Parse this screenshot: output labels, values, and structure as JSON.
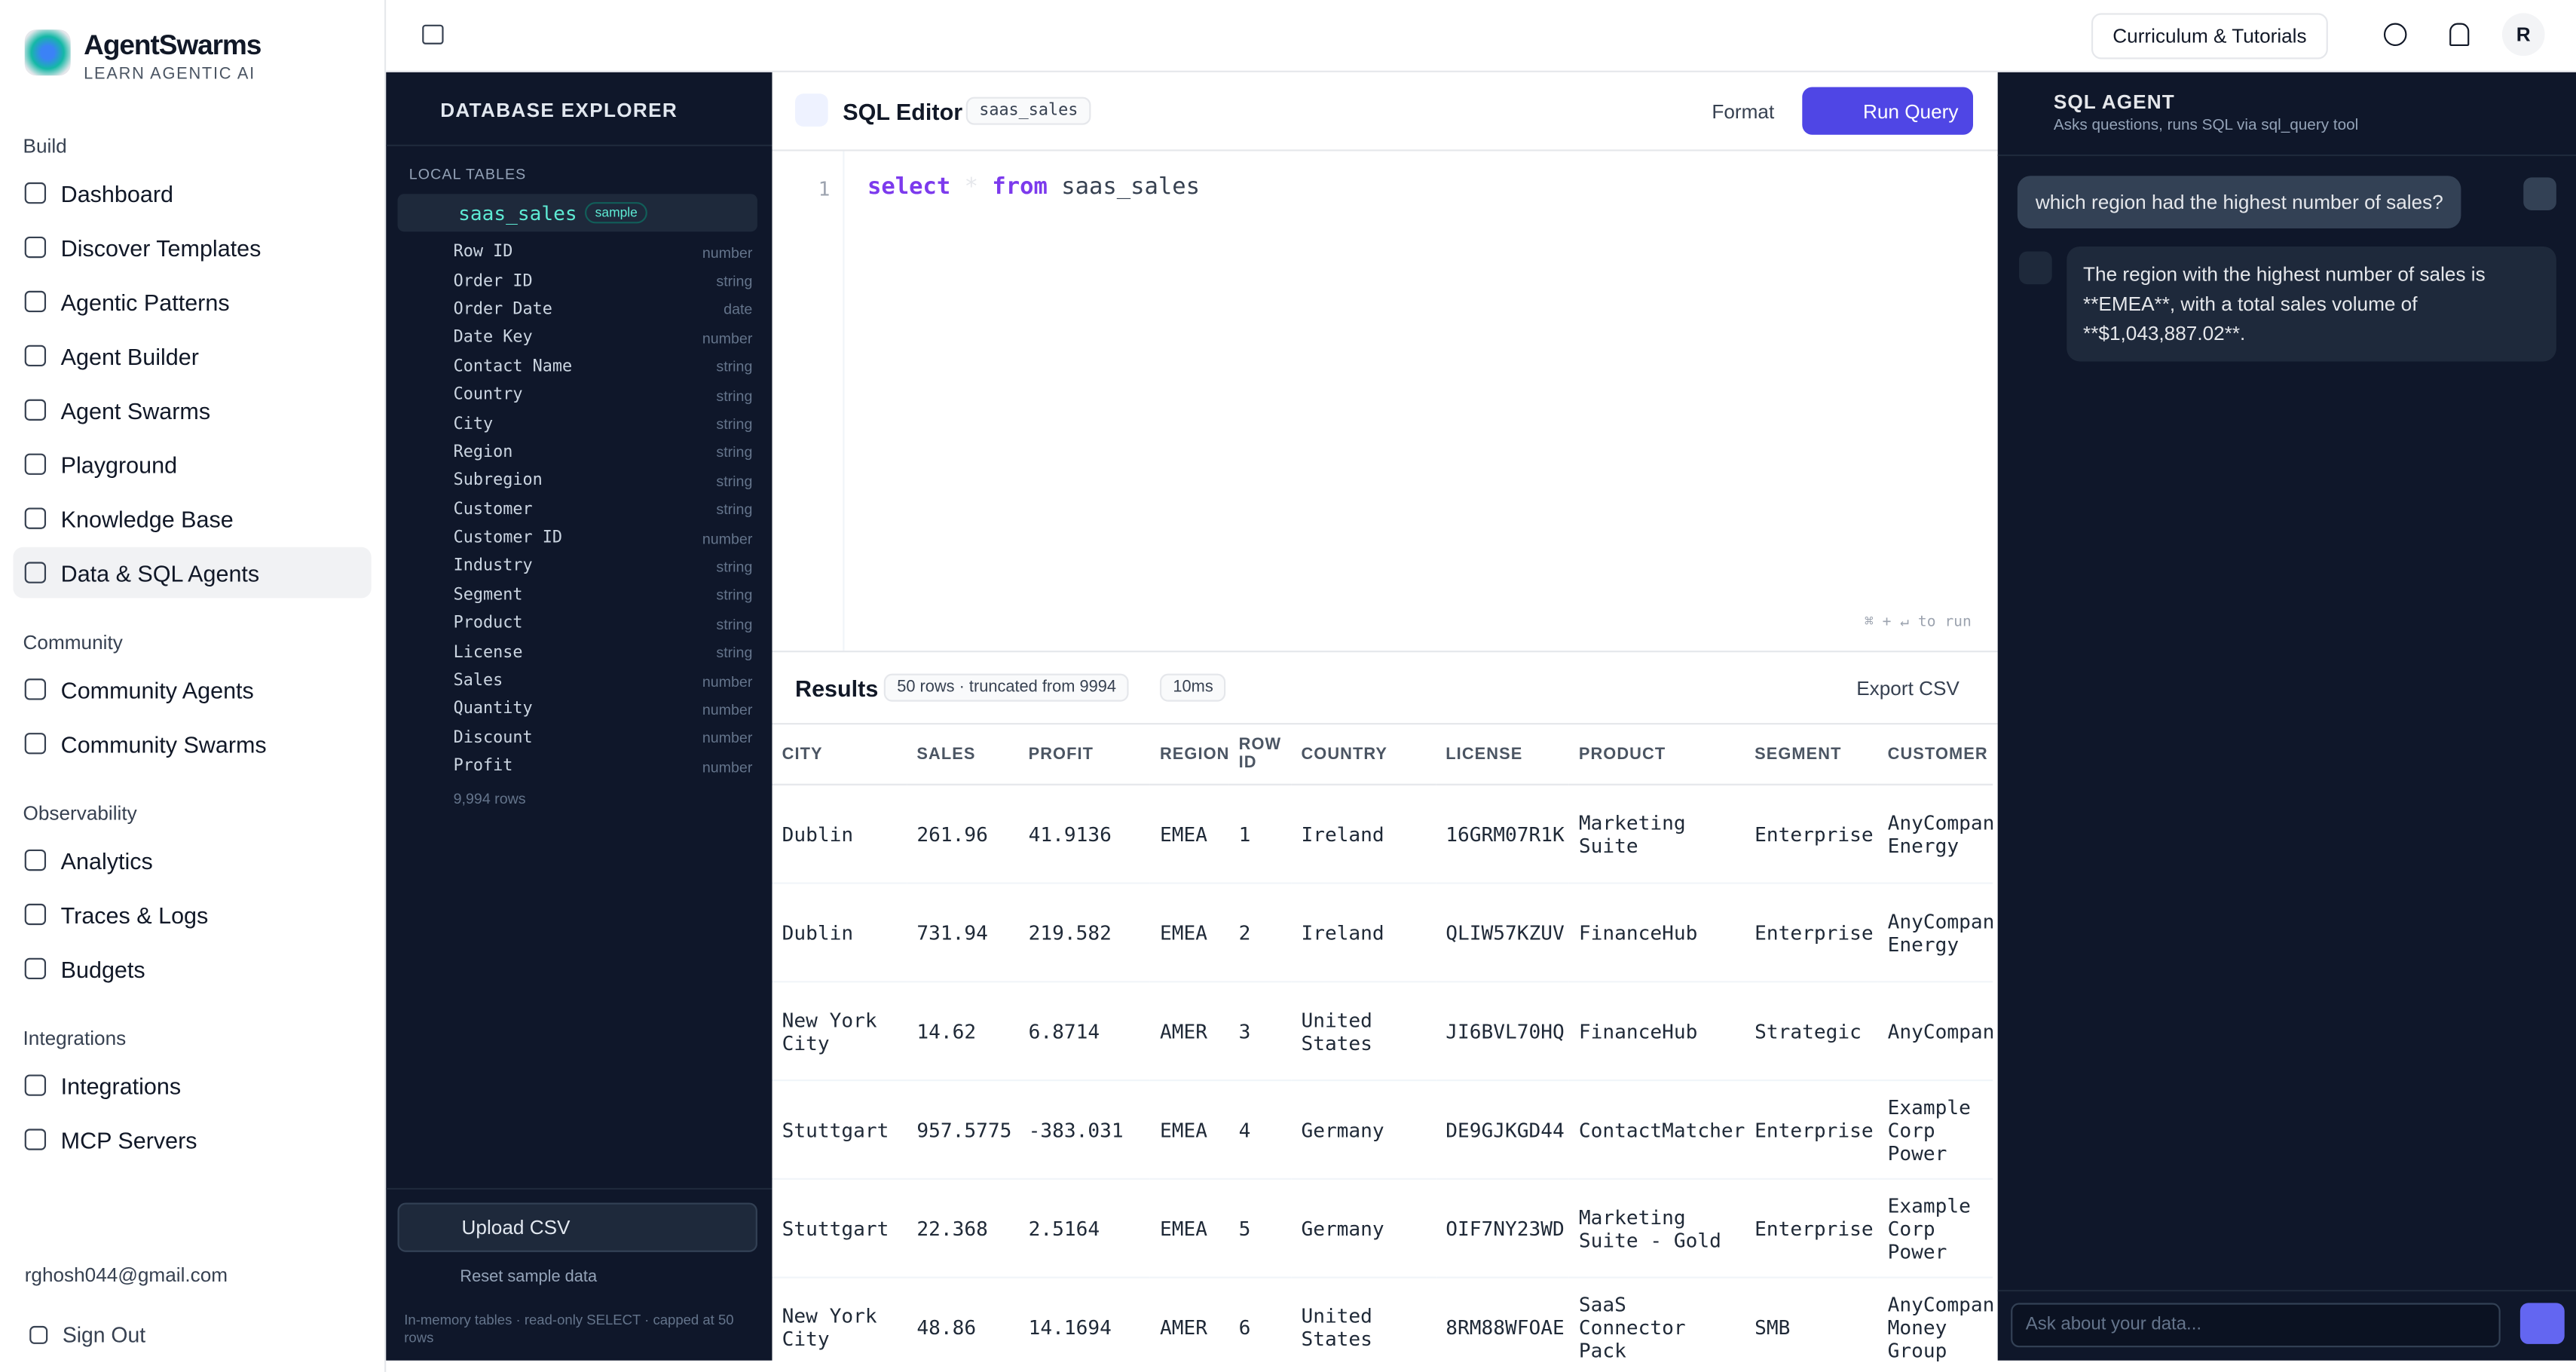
{
  "brand": {
    "name": "AgentSwarms",
    "tagline": "LEARN AGENTIC AI"
  },
  "sidebar": {
    "sections": [
      {
        "title": "Build",
        "items": [
          "Dashboard",
          "Discover Templates",
          "Agentic Patterns",
          "Agent Builder",
          "Agent Swarms",
          "Playground",
          "Knowledge Base",
          "Data & SQL Agents"
        ]
      },
      {
        "title": "Community",
        "items": [
          "Community Agents",
          "Community Swarms"
        ]
      },
      {
        "title": "Observability",
        "items": [
          "Analytics",
          "Traces & Logs",
          "Budgets"
        ]
      },
      {
        "title": "Integrations",
        "items": [
          "Integrations",
          "MCP Servers"
        ]
      }
    ],
    "active": "Data & SQL Agents",
    "email": "rghosh044@gmail.com",
    "sign_out": "Sign Out"
  },
  "topbar": {
    "tutorials": "Curriculum & Tutorials",
    "avatar": "R"
  },
  "explorer": {
    "title": "DATABASE EXPLORER",
    "section": "LOCAL TABLES",
    "table": "saas_sales",
    "badge": "sample",
    "columns": [
      [
        "Row ID",
        "number"
      ],
      [
        "Order ID",
        "string"
      ],
      [
        "Order Date",
        "date"
      ],
      [
        "Date Key",
        "number"
      ],
      [
        "Contact Name",
        "string"
      ],
      [
        "Country",
        "string"
      ],
      [
        "City",
        "string"
      ],
      [
        "Region",
        "string"
      ],
      [
        "Subregion",
        "string"
      ],
      [
        "Customer",
        "string"
      ],
      [
        "Customer ID",
        "number"
      ],
      [
        "Industry",
        "string"
      ],
      [
        "Segment",
        "string"
      ],
      [
        "Product",
        "string"
      ],
      [
        "License",
        "string"
      ],
      [
        "Sales",
        "number"
      ],
      [
        "Quantity",
        "number"
      ],
      [
        "Discount",
        "number"
      ],
      [
        "Profit",
        "number"
      ]
    ],
    "row_count": "9,994 rows",
    "upload": "Upload CSV",
    "reset": "Reset sample data",
    "note": "In-memory tables · read-only SELECT · capped at 50 rows"
  },
  "editor": {
    "title": "SQL Editor",
    "table_badge": "saas_sales",
    "format": "Format",
    "run": "Run Query",
    "line": "1",
    "query": [
      "select",
      "*",
      "from",
      "saas_sales"
    ],
    "hint": "⌘ + ↵ to run"
  },
  "results": {
    "title": "Results",
    "rows_badge": "50 rows · truncated from 9994",
    "time_badge": "10ms",
    "export": "Export CSV",
    "headers": [
      "CITY",
      "SALES",
      "PROFIT",
      "REGION",
      "ROW ID",
      "COUNTRY",
      "LICENSE",
      "PRODUCT",
      "SEGMENT",
      "CUSTOMER"
    ],
    "rows": [
      [
        "Dublin",
        "261.96",
        "41.9136",
        "EMEA",
        "1",
        "Ireland",
        "16GRM07R1K",
        "Marketing Suite",
        "Enterprise",
        "AnyCompany Energy"
      ],
      [
        "Dublin",
        "731.94",
        "219.582",
        "EMEA",
        "2",
        "Ireland",
        "QLIW57KZUV",
        "FinanceHub",
        "Enterprise",
        "AnyCompany Energy"
      ],
      [
        "New York City",
        "14.62",
        "6.8714",
        "AMER",
        "3",
        "United States",
        "JI6BVL70HQ",
        "FinanceHub",
        "Strategic",
        "AnyCompany"
      ],
      [
        "Stuttgart",
        "957.5775",
        "-383.031",
        "EMEA",
        "4",
        "Germany",
        "DE9GJKGD44",
        "ContactMatcher",
        "Enterprise",
        "Example Corp Power"
      ],
      [
        "Stuttgart",
        "22.368",
        "2.5164",
        "EMEA",
        "5",
        "Germany",
        "OIF7NY23WD",
        "Marketing Suite - Gold",
        "Enterprise",
        "Example Corp Power"
      ],
      [
        "New York City",
        "48.86",
        "14.1694",
        "AMER",
        "6",
        "United States",
        "8RM88WFOAE",
        "SaaS Connector Pack",
        "SMB",
        "AnyCompany Money Group"
      ]
    ]
  },
  "agent": {
    "title": "SQL AGENT",
    "subtitle": "Asks questions, runs SQL via sql_query tool",
    "messages": [
      {
        "role": "user",
        "text": "which region had the highest number of sales?"
      },
      {
        "role": "assistant",
        "text": "The region with the highest number of sales is **EMEA**, with a total sales volume of **$1,043,887.02**."
      }
    ],
    "placeholder": "Ask about your data..."
  }
}
